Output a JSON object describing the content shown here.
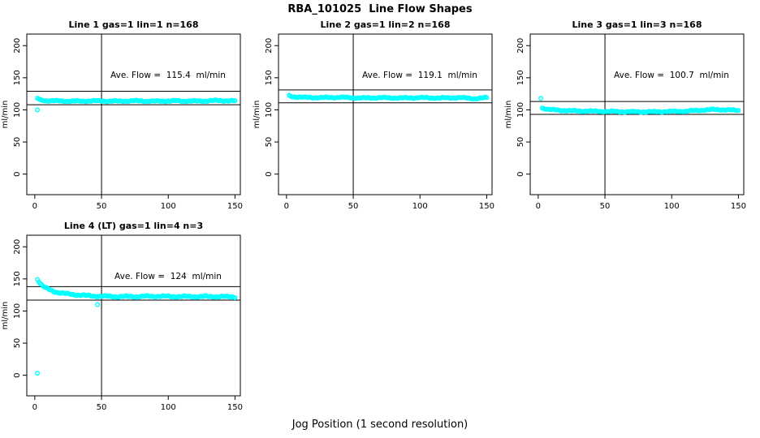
{
  "page": {
    "title": "RBA_101025  Line Flow Shapes",
    "xlabel": "Jog Position (1 second resolution)",
    "background": "#ffffff",
    "frame_color": "#000000"
  },
  "chart_data": [
    {
      "type": "scatter",
      "title": "Line 1 gas=1 lin=1 n=168",
      "ylabel": "ml/min",
      "ave_flow": 115.4,
      "ave_flow_label": "Ave. Flow =  115.4  ml/min",
      "point_color": "#00ffff",
      "xlim": [
        -6,
        154
      ],
      "ylim": [
        -32,
        218
      ],
      "xticks": [
        0,
        50,
        100,
        150
      ],
      "yticks": [
        0,
        50,
        100,
        150,
        200
      ],
      "vline_x": 50,
      "hlines": [
        129,
        108
      ],
      "series_points": [
        [
          2,
          118
        ],
        [
          4,
          115.5
        ],
        [
          8,
          114.5
        ],
        [
          15,
          114
        ],
        [
          30,
          113.5
        ],
        [
          45,
          114
        ],
        [
          60,
          113.5
        ],
        [
          75,
          114
        ],
        [
          90,
          113.5
        ],
        [
          105,
          114
        ],
        [
          120,
          113.5
        ],
        [
          135,
          114.5
        ],
        [
          150,
          114
        ]
      ],
      "outliers": [
        [
          2,
          100
        ]
      ],
      "jitter": 1.1,
      "seed": 1
    },
    {
      "type": "scatter",
      "title": "Line 2 gas=1 lin=2 n=168",
      "ylabel": "ml/min",
      "ave_flow": 119.1,
      "ave_flow_label": "Ave. Flow =  119.1  ml/min",
      "point_color": "#00ffff",
      "xlim": [
        -6,
        154
      ],
      "ylim": [
        -32,
        218
      ],
      "xticks": [
        0,
        50,
        100,
        150
      ],
      "yticks": [
        0,
        50,
        100,
        150,
        200
      ],
      "vline_x": 50,
      "hlines": [
        131,
        111
      ],
      "series_points": [
        [
          2,
          122
        ],
        [
          5,
          120.5
        ],
        [
          12,
          119.5
        ],
        [
          25,
          119
        ],
        [
          40,
          119.5
        ],
        [
          55,
          118.5
        ],
        [
          70,
          119
        ],
        [
          85,
          118.5
        ],
        [
          100,
          119
        ],
        [
          115,
          118.5
        ],
        [
          130,
          119
        ],
        [
          142,
          117.5
        ],
        [
          150,
          119
        ]
      ],
      "outliers": [],
      "jitter": 1.1,
      "seed": 2
    },
    {
      "type": "scatter",
      "title": "Line 3 gas=1 lin=3 n=168",
      "ylabel": "ml/min",
      "ave_flow": 100.7,
      "ave_flow_label": "Ave. Flow =  100.7  ml/min",
      "point_color": "#00ffff",
      "xlim": [
        -6,
        154
      ],
      "ylim": [
        -32,
        218
      ],
      "xticks": [
        0,
        50,
        100,
        150
      ],
      "yticks": [
        0,
        50,
        100,
        150,
        200
      ],
      "vline_x": 50,
      "hlines": [
        113,
        93
      ],
      "series_points": [
        [
          3,
          103
        ],
        [
          8,
          100.5
        ],
        [
          15,
          99.5
        ],
        [
          25,
          98.5
        ],
        [
          40,
          98
        ],
        [
          55,
          97.5
        ],
        [
          70,
          97
        ],
        [
          85,
          97
        ],
        [
          100,
          97.5
        ],
        [
          112,
          98
        ],
        [
          122,
          99.5
        ],
        [
          132,
          100.5
        ],
        [
          142,
          100
        ],
        [
          150,
          99
        ]
      ],
      "outliers": [
        [
          2,
          118
        ]
      ],
      "jitter": 1.1,
      "seed": 3
    },
    {
      "type": "scatter",
      "title": "Line 4 (LT) gas=1 lin=4 n=3",
      "ylabel": "ml/min",
      "ave_flow": 124,
      "ave_flow_label": "Ave. Flow =  124  ml/min",
      "point_color": "#00ffff",
      "xlim": [
        -6,
        154
      ],
      "ylim": [
        -32,
        218
      ],
      "xticks": [
        0,
        50,
        100,
        150
      ],
      "yticks": [
        0,
        50,
        100,
        150,
        200
      ],
      "vline_x": 50,
      "hlines": [
        138,
        117
      ],
      "series_points": [
        [
          2,
          150
        ],
        [
          4,
          143
        ],
        [
          6,
          139
        ],
        [
          8,
          136
        ],
        [
          10,
          134
        ],
        [
          13,
          131.5
        ],
        [
          16,
          129.5
        ],
        [
          20,
          128
        ],
        [
          25,
          126.5
        ],
        [
          30,
          125.5
        ],
        [
          36,
          124.5
        ],
        [
          42,
          123.5
        ],
        [
          50,
          123
        ],
        [
          60,
          122.5
        ],
        [
          75,
          122.5
        ],
        [
          90,
          123
        ],
        [
          105,
          122.5
        ],
        [
          120,
          122.5
        ],
        [
          135,
          122.5
        ],
        [
          150,
          122
        ]
      ],
      "outliers": [
        [
          2,
          3
        ],
        [
          47,
          110
        ]
      ],
      "jitter": 1.4,
      "seed": 4
    }
  ]
}
